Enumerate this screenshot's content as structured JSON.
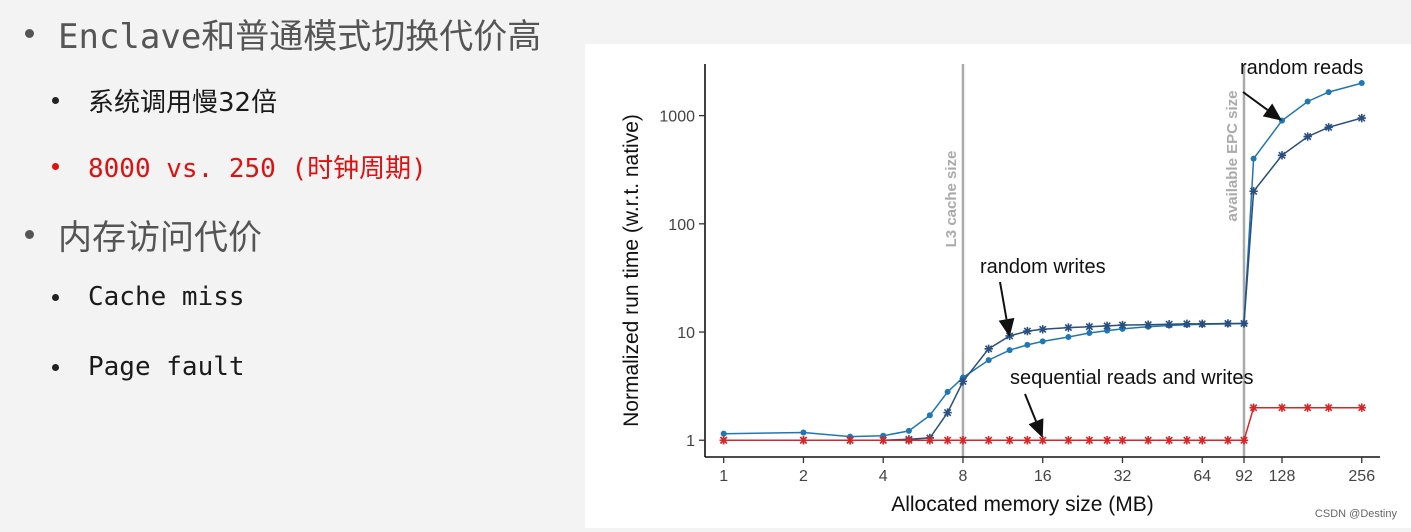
{
  "slide": {
    "bullets": [
      {
        "level": 1,
        "text": "Enclave和普通模式切换代价高"
      },
      {
        "level": 2,
        "text": "系统调用慢32倍"
      },
      {
        "level": 2,
        "text": "8000 vs. 250 (时钟周期)",
        "color": "#e01010"
      },
      {
        "level": 1,
        "text": "内存访问代价"
      },
      {
        "level": 2,
        "text": "Cache miss"
      },
      {
        "level": 2,
        "text": "Page fault"
      }
    ]
  },
  "chart_data": {
    "type": "line",
    "title": "",
    "xlabel": "Allocated memory size (MB)",
    "ylabel": "Normalized run time (w.r.t. native)",
    "x_scale": "log2",
    "y_scale": "log10",
    "xlim": [
      0.85,
      300
    ],
    "ylim": [
      0.7,
      3000
    ],
    "x_ticks": [
      1,
      2,
      4,
      8,
      16,
      32,
      64,
      92,
      128,
      256
    ],
    "x_tick_labels": [
      "1",
      "2",
      "4",
      "8",
      "16",
      "32",
      "64",
      "92",
      "128",
      "256"
    ],
    "y_ticks": [
      1,
      10,
      100,
      1000
    ],
    "y_tick_labels": [
      "1",
      "10",
      "100",
      "1000"
    ],
    "grid": false,
    "vlines": [
      {
        "x": 8,
        "label": "L3 cache size",
        "color": "#aaaaaa"
      },
      {
        "x": 92,
        "label": "available EPC size",
        "color": "#aaaaaa"
      }
    ],
    "annotations": [
      {
        "text": "random reads",
        "arrow_to": [
          128,
          900
        ]
      },
      {
        "text": "random writes",
        "arrow_to": [
          12,
          9
        ]
      },
      {
        "text": "sequential reads and writes",
        "arrow_to": [
          16,
          1.05
        ]
      }
    ],
    "series": [
      {
        "color": "#1f77b4",
        "marker": "dot",
        "x": [
          1,
          2,
          3,
          4,
          5,
          6,
          7,
          8,
          10,
          12,
          14,
          16,
          20,
          24,
          28,
          32,
          40,
          48,
          56,
          64,
          80,
          92,
          100,
          128,
          160,
          192,
          256
        ],
        "y": [
          1.15,
          1.18,
          1.08,
          1.1,
          1.22,
          1.7,
          2.8,
          3.8,
          5.5,
          6.8,
          7.6,
          8.2,
          9.0,
          9.8,
          10.3,
          10.7,
          11.2,
          11.5,
          11.7,
          11.8,
          11.9,
          12,
          400,
          900,
          1350,
          1650,
          2000
        ]
      },
      {
        "color": "#2a4f7f",
        "marker": "star",
        "x": [
          1,
          2,
          3,
          4,
          5,
          6,
          7,
          8,
          10,
          12,
          14,
          16,
          20,
          24,
          28,
          32,
          40,
          48,
          56,
          64,
          80,
          92,
          100,
          128,
          160,
          192,
          256
        ],
        "y": [
          1,
          1,
          1,
          1,
          1.02,
          1.05,
          1.8,
          3.5,
          7,
          9.2,
          10.2,
          10.6,
          11,
          11.2,
          11.4,
          11.6,
          11.7,
          11.8,
          11.9,
          11.9,
          12,
          12,
          200,
          430,
          640,
          780,
          950
        ]
      },
      {
        "color": "#d62728",
        "marker": "star",
        "x": [
          1,
          2,
          3,
          4,
          5,
          6,
          7,
          8,
          10,
          12,
          14,
          16,
          20,
          24,
          28,
          32,
          40,
          48,
          56,
          64,
          80,
          92,
          100,
          128,
          160,
          192,
          256
        ],
        "y": [
          1,
          1,
          1,
          1,
          1,
          1,
          1,
          1,
          1,
          1,
          1,
          1,
          1,
          1,
          1,
          1,
          1,
          1,
          1,
          1,
          1,
          1,
          2,
          2,
          2,
          2,
          2
        ]
      }
    ]
  },
  "watermark": "CSDN @Destiny"
}
